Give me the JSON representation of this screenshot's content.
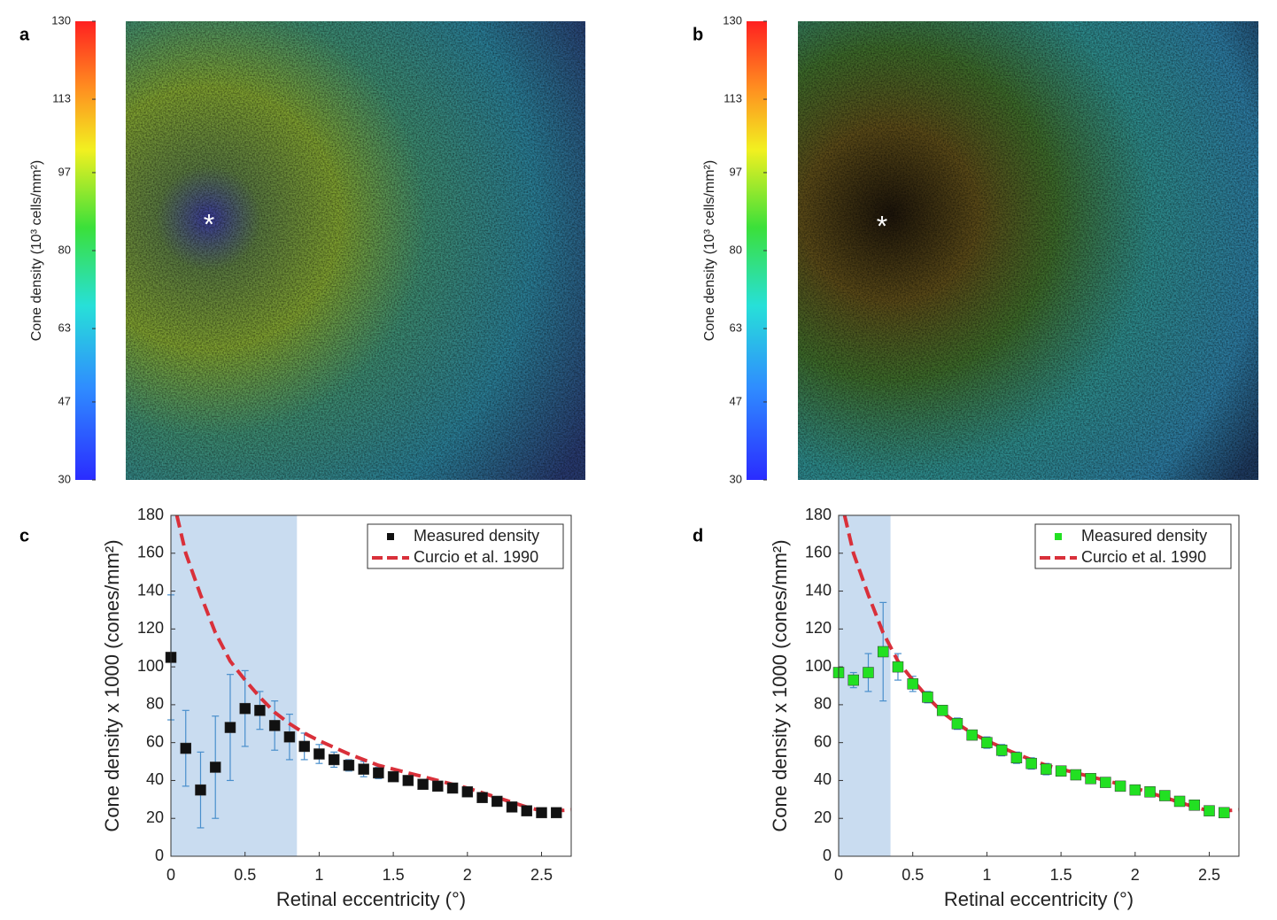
{
  "chart_data": [
    {
      "type": "image",
      "panel_label": "a",
      "annotation": "*",
      "colorbar": {
        "label": "Cone density (10³ cells/mm²)",
        "lim": [
          30,
          130
        ],
        "ticks": [
          30,
          47,
          63,
          80,
          97,
          113,
          130
        ]
      }
    },
    {
      "type": "image",
      "panel_label": "b",
      "annotation": "*",
      "colorbar": {
        "label": "Cone density (10³ cells/mm²)",
        "lim": [
          30,
          130
        ],
        "ticks": [
          30,
          47,
          63,
          80,
          97,
          113,
          130
        ]
      }
    },
    {
      "type": "errorbar",
      "panel_label": "c",
      "xlabel": "Retinal eccentricity (°)",
      "ylabel": "Cone density x 1000 (cones/mm²)",
      "xlim": [
        0,
        2.7
      ],
      "ylim": [
        0,
        180
      ],
      "xticks": [
        0,
        0.5,
        1,
        1.5,
        2,
        2.5
      ],
      "yticks": [
        0,
        20,
        40,
        60,
        80,
        100,
        120,
        140,
        160,
        180
      ],
      "shaded_region": [
        0,
        0.85
      ],
      "legend": "upper right",
      "series": [
        {
          "name": "Measured density",
          "color": "#111111",
          "error_color": "#4a8fcc",
          "x": [
            0,
            0.1,
            0.2,
            0.3,
            0.4,
            0.5,
            0.6,
            0.7,
            0.8,
            0.9,
            1.0,
            1.1,
            1.2,
            1.3,
            1.4,
            1.5,
            1.6,
            1.7,
            1.8,
            1.9,
            2.0,
            2.1,
            2.2,
            2.3,
            2.4,
            2.5,
            2.6
          ],
          "values": [
            105,
            57,
            35,
            47,
            68,
            78,
            77,
            69,
            63,
            58,
            54,
            51,
            48,
            46,
            44,
            42,
            40,
            38,
            37,
            36,
            34,
            31,
            29,
            26,
            24,
            23,
            23
          ],
          "errors": [
            33,
            20,
            20,
            27,
            28,
            20,
            10,
            13,
            12,
            7,
            5,
            4,
            3,
            4,
            3,
            2,
            2,
            2,
            2,
            2,
            2,
            2,
            2,
            2,
            2,
            2,
            2
          ]
        },
        {
          "name": "Curcio et al. 1990",
          "color": "#d9303a",
          "x": [
            0.04,
            0.1,
            0.2,
            0.3,
            0.4,
            0.5,
            0.6,
            0.7,
            0.8,
            0.9,
            1.0,
            1.2,
            1.4,
            1.6,
            1.8,
            2.0,
            2.2,
            2.4,
            2.5,
            2.6,
            2.7
          ],
          "values": [
            180,
            160,
            138,
            118,
            103,
            93,
            84,
            76,
            70,
            65,
            61,
            54,
            48,
            44,
            40,
            36,
            31,
            26,
            24,
            24,
            24.5
          ]
        }
      ]
    },
    {
      "type": "errorbar",
      "panel_label": "d",
      "xlabel": "Retinal eccentricity (°)",
      "ylabel": "Cone density x 1000 (cones/mm²)",
      "xlim": [
        0,
        2.7
      ],
      "ylim": [
        0,
        180
      ],
      "xticks": [
        0,
        0.5,
        1,
        1.5,
        2,
        2.5
      ],
      "yticks": [
        0,
        20,
        40,
        60,
        80,
        100,
        120,
        140,
        160,
        180
      ],
      "shaded_region": [
        0,
        0.35
      ],
      "legend": "upper right",
      "series": [
        {
          "name": "Measured density",
          "color": "#22e022",
          "error_color": "#4a8fcc",
          "x": [
            0,
            0.1,
            0.2,
            0.3,
            0.4,
            0.5,
            0.6,
            0.7,
            0.8,
            0.9,
            1.0,
            1.1,
            1.2,
            1.3,
            1.4,
            1.5,
            1.6,
            1.7,
            1.8,
            1.9,
            2.0,
            2.1,
            2.2,
            2.3,
            2.4,
            2.5,
            2.6
          ],
          "values": [
            97,
            93,
            97,
            108,
            100,
            91,
            84,
            77,
            70,
            64,
            60,
            56,
            52,
            49,
            46,
            45,
            43,
            41,
            39,
            37,
            35,
            34,
            32,
            29,
            27,
            24,
            23
          ],
          "errors": [
            2,
            4,
            10,
            26,
            7,
            4,
            3,
            2,
            3,
            2,
            3,
            3,
            3,
            3,
            3,
            2,
            2,
            2,
            2,
            1,
            1,
            2,
            2,
            1,
            1,
            1,
            1
          ]
        },
        {
          "name": "Curcio et al. 1990",
          "color": "#d9303a",
          "x": [
            0.04,
            0.1,
            0.2,
            0.3,
            0.4,
            0.5,
            0.6,
            0.7,
            0.8,
            0.9,
            1.0,
            1.2,
            1.4,
            1.6,
            1.8,
            2.0,
            2.2,
            2.4,
            2.5,
            2.6,
            2.7
          ],
          "values": [
            180,
            160,
            138,
            118,
            103,
            93,
            84,
            76,
            70,
            65,
            61,
            54,
            48,
            44,
            40,
            36,
            31,
            26,
            24,
            24,
            24.5
          ]
        }
      ]
    }
  ]
}
